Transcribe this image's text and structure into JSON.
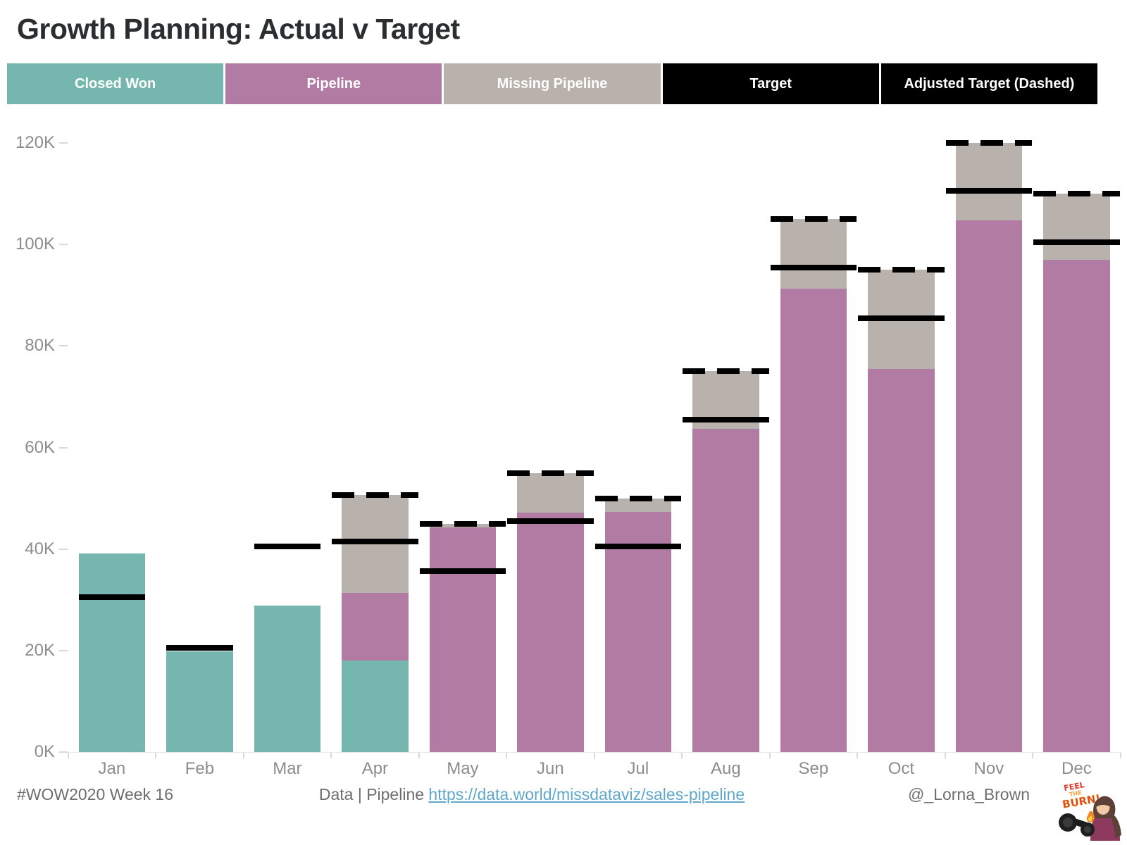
{
  "title": "Growth Planning: Actual v Target",
  "legend": [
    {
      "label": "Closed Won",
      "color": "#75b6ae"
    },
    {
      "label": "Pipeline",
      "color": "#b17ba4"
    },
    {
      "label": "Missing Pipeline",
      "color": "#b8b1ac"
    },
    {
      "label": "Target",
      "color": "#000000"
    },
    {
      "label": "Adjusted Target (Dashed)",
      "color": "#000000"
    }
  ],
  "chart_data": {
    "type": "bar",
    "stacked": true,
    "title": "Growth Planning: Actual v Target",
    "unit": "K (thousands)",
    "categories": [
      "Jan",
      "Feb",
      "Mar",
      "Apr",
      "May",
      "Jun",
      "Jul",
      "Aug",
      "Sep",
      "Oct",
      "Nov",
      "Dec"
    ],
    "series": [
      {
        "name": "Closed Won",
        "color": "#75b6ae",
        "values": [
          39.1,
          19.8,
          28.9,
          18.0,
          0,
          0,
          0,
          0,
          0,
          0,
          0,
          0
        ]
      },
      {
        "name": "Pipeline",
        "color": "#b17ba4",
        "values": [
          0,
          0,
          0,
          13.3,
          44.2,
          47.2,
          47.3,
          63.7,
          91.3,
          75.5,
          104.8,
          97.0
        ]
      },
      {
        "name": "Missing Pipeline",
        "color": "#b8b1ac",
        "values": [
          0,
          0,
          0,
          19.4,
          0.8,
          7.8,
          2.7,
          11.3,
          13.7,
          19.5,
          15.2,
          13.0
        ]
      }
    ],
    "lines": [
      {
        "name": "Target",
        "style": "solid",
        "color": "#000000",
        "values": [
          30.5,
          20.5,
          40.5,
          41.5,
          35.6,
          45.5,
          40.5,
          65.5,
          95.5,
          85.5,
          110.5,
          100.5
        ]
      },
      {
        "name": "Adjusted Target (Dashed)",
        "style": "dashed",
        "color": "#000000",
        "values": [
          null,
          null,
          null,
          50.7,
          45.0,
          55.0,
          50.0,
          75.0,
          105.0,
          95.0,
          120.0,
          110.0
        ]
      }
    ],
    "y_ticks": [
      "0K",
      "20K",
      "40K",
      "60K",
      "80K",
      "100K",
      "120K"
    ],
    "ylim": [
      0,
      124
    ],
    "xlabel": "",
    "ylabel": "",
    "gridlines": false,
    "legend_position": "top"
  },
  "footer": {
    "left": "#WOW2020 Week 16",
    "center_prefix": "Data | Pipeline ",
    "center_link": "https://data.world/missdataviz/sales-pipeline",
    "right_handle": "@_Lorna_Brown",
    "avatar_caption": "FEEL THE BURN!"
  }
}
